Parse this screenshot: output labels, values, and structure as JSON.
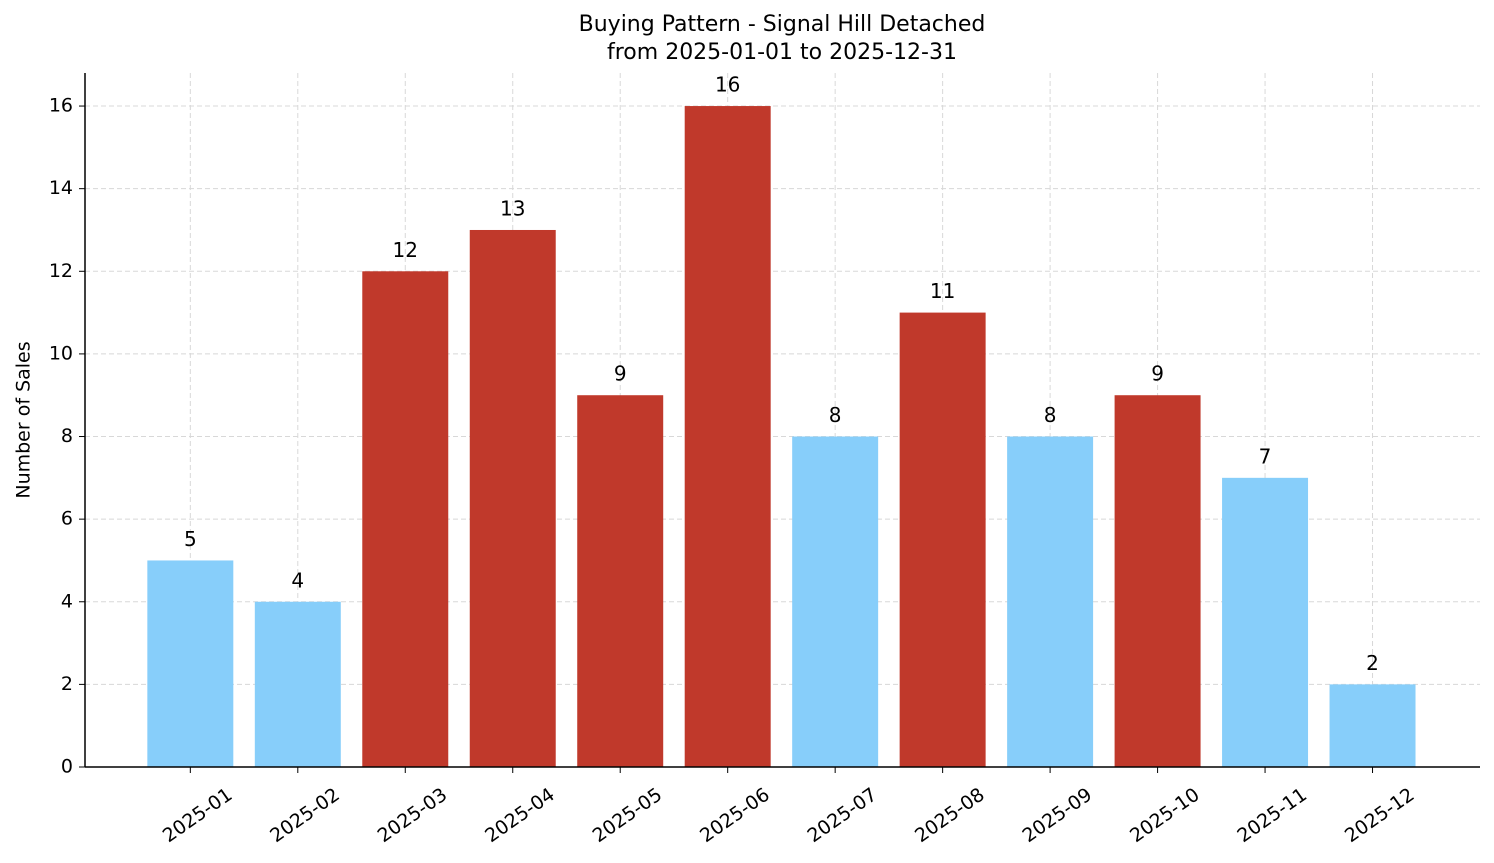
{
  "chart_data": {
    "type": "bar",
    "title": "Buying Pattern - Signal Hill Detached",
    "subtitle": "from 2025-01-01 to 2025-12-31",
    "y_label": "Number of Sales",
    "categories": [
      "2025-01",
      "2025-02",
      "2025-03",
      "2025-04",
      "2025-05",
      "2025-06",
      "2025-07",
      "2025-08",
      "2025-09",
      "2025-10",
      "2025-11",
      "2025-12"
    ],
    "values": [
      5,
      4,
      12,
      13,
      9,
      16,
      8,
      11,
      8,
      9,
      7,
      2
    ],
    "colors": [
      "#87cefa",
      "#87cefa",
      "#c0392b",
      "#c0392b",
      "#c0392b",
      "#c0392b",
      "#87cefa",
      "#c0392b",
      "#87cefa",
      "#c0392b",
      "#87cefa",
      "#87cefa"
    ],
    "ylim": [
      0,
      16.8
    ],
    "yticks": [
      0,
      2,
      4,
      6,
      8,
      10,
      12,
      14,
      16
    ],
    "grid": true
  }
}
